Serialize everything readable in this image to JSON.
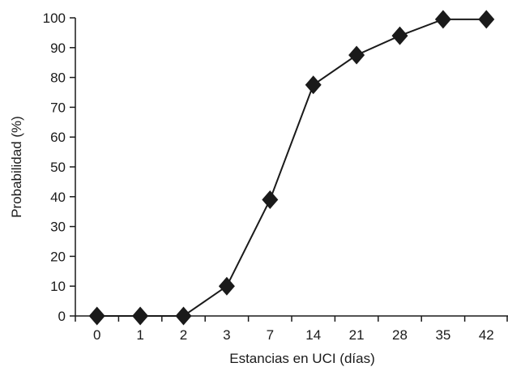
{
  "chart_data": {
    "type": "line",
    "title": "",
    "xlabel": "Estancias en UCI (días)",
    "ylabel": "Probabilidad (%)",
    "categories": [
      "0",
      "1",
      "2",
      "3",
      "7",
      "14",
      "21",
      "28",
      "35",
      "42"
    ],
    "series": [
      {
        "values": [
          0,
          0,
          0,
          10,
          39,
          77.5,
          87.5,
          94,
          99.5,
          99.5
        ]
      }
    ],
    "ylim": [
      0,
      100
    ],
    "yticks": [
      "0",
      "10",
      "20",
      "30",
      "40",
      "50",
      "60",
      "70",
      "80",
      "90",
      "100"
    ],
    "grid": false,
    "legend": "none",
    "marker": "diamond",
    "colors": {
      "line": "#1a1a1a",
      "marker": "#1a1a1a",
      "axis": "#1a1a1a"
    }
  }
}
